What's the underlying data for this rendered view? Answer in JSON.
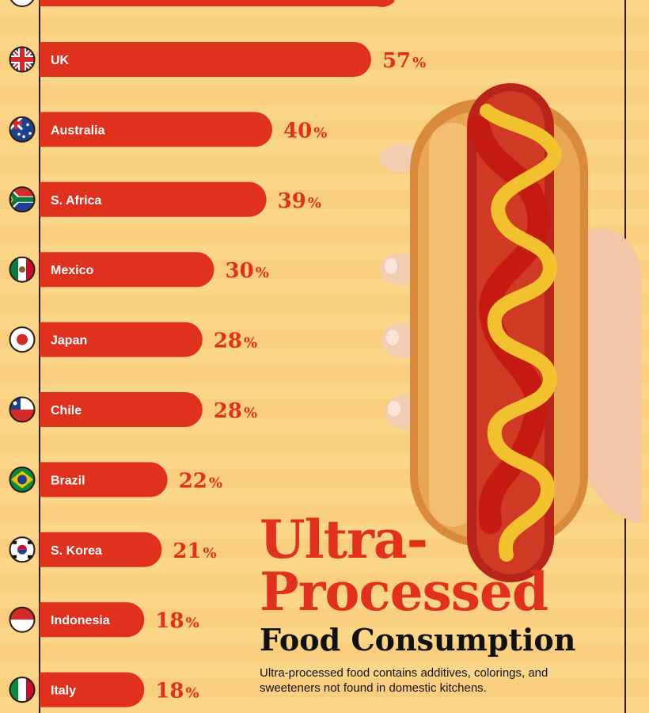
{
  "title": {
    "line1": "Ultra-",
    "line2": "Processed",
    "line3": "Food Consumption"
  },
  "description": "Ultra-processed food contains additives, colorings, and sweeteners not found in domestic kitchens.",
  "colors": {
    "bar": "#e0301e",
    "background": "#fbd588",
    "title_accent": "#e0301e"
  },
  "chart_data": {
    "type": "bar",
    "orientation": "horizontal",
    "categories": [
      "UK",
      "Australia",
      "S. Africa",
      "Mexico",
      "Japan",
      "Chile",
      "Brazil",
      "S. Korea",
      "Indonesia",
      "Italy"
    ],
    "values": [
      57,
      40,
      39,
      30,
      28,
      28,
      22,
      21,
      18,
      18
    ],
    "value_suffix": "%",
    "flag_icons": [
      "uk-flag-icon",
      "australia-flag-icon",
      "south-africa-flag-icon",
      "mexico-flag-icon",
      "japan-flag-icon",
      "chile-flag-icon",
      "brazil-flag-icon",
      "south-korea-flag-icon",
      "indonesia-flag-icon",
      "italy-flag-icon"
    ],
    "partial_top_bar": {
      "note": "cut off at top edge"
    }
  }
}
